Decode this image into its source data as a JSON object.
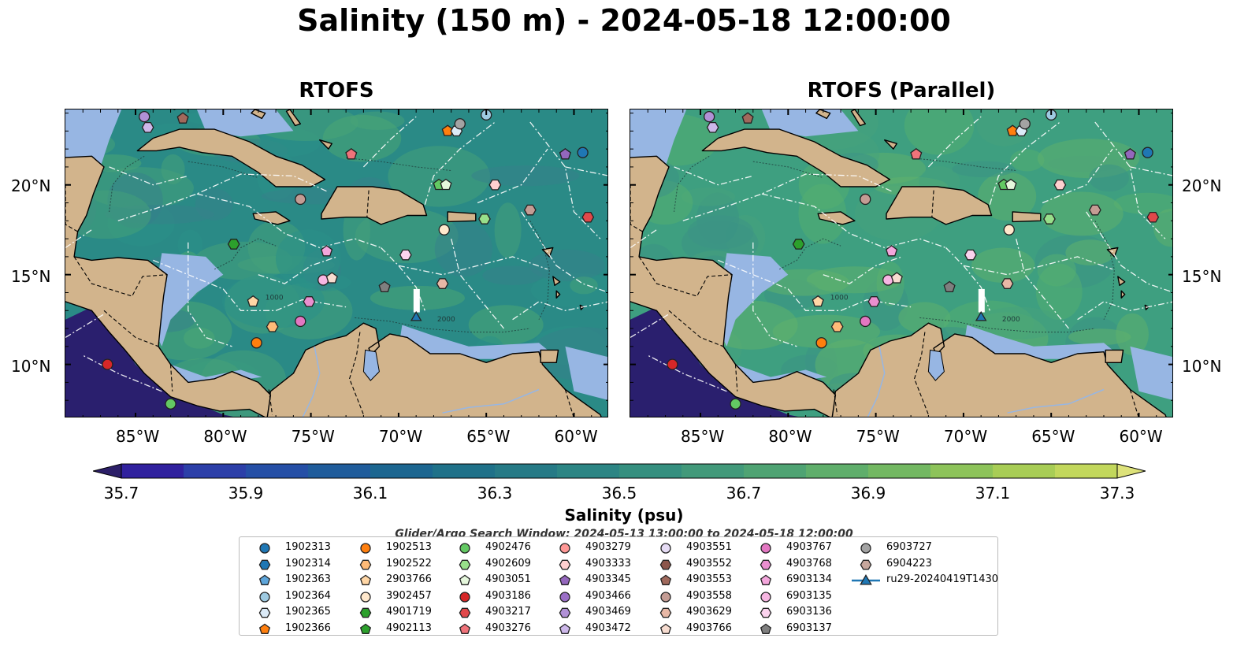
{
  "title": "Salinity (150 m) - 2024-05-18 12:00:00",
  "panels": [
    {
      "title": "RTOFS",
      "palette": [
        "#2a8a86",
        "#2c9488",
        "#4ea876",
        "#3a7f8c",
        "#55b06f"
      ]
    },
    {
      "title": "RTOFS (Parallel)",
      "palette": [
        "#3e9f80",
        "#48a47b",
        "#5bb46c",
        "#3c8f87",
        "#6ab866"
      ]
    }
  ],
  "map": {
    "lon_range": [
      -89,
      -58
    ],
    "lat_range": [
      7,
      24.2
    ],
    "lat_ticks": [
      "20°N",
      "15°N",
      "10°N"
    ],
    "lon_ticks": [
      "85°W",
      "80°W",
      "75°W",
      "70°W",
      "65°W",
      "60°W"
    ],
    "land_color": "#d2b48c",
    "shelf_color": "#97b6e3",
    "pacific_color": "#2a1f6e"
  },
  "colorbar": {
    "title": "Salinity (psu)",
    "ticks": [
      "35.7",
      "35.9",
      "36.1",
      "36.3",
      "36.5",
      "36.7",
      "36.9",
      "37.1",
      "37.3"
    ],
    "colors": [
      "#2c1f68",
      "#30219e",
      "#2c3fa8",
      "#254fa6",
      "#1f5c9b",
      "#1c6690",
      "#1f7189",
      "#267a86",
      "#2c8584",
      "#358f7f",
      "#42997a",
      "#4fa373",
      "#5fae6b",
      "#73b862",
      "#8dc35a",
      "#a8cd56",
      "#c2d75c",
      "#dde27a"
    ]
  },
  "search_window": "Glider/Argo Search Window: 2024-05-13 13:00:00 to 2024-05-18 12:00:00",
  "legend": [
    {
      "id": "1902313",
      "shape": "circle",
      "color": "#1f77b4"
    },
    {
      "id": "1902314",
      "shape": "hexagon",
      "color": "#1f77b4"
    },
    {
      "id": "1902363",
      "shape": "pentagon",
      "color": "#5da5da"
    },
    {
      "id": "1902364",
      "shape": "circle",
      "color": "#9ecae1"
    },
    {
      "id": "1902365",
      "shape": "hexagon",
      "color": "#dbeaf7"
    },
    {
      "id": "1902366",
      "shape": "pentagon",
      "color": "#ff7f0e"
    },
    {
      "id": "1902513",
      "shape": "circle",
      "color": "#ff7f0e"
    },
    {
      "id": "1902522",
      "shape": "hexagon",
      "color": "#ffbb78"
    },
    {
      "id": "2903766",
      "shape": "pentagon",
      "color": "#ffd6a5"
    },
    {
      "id": "3902457",
      "shape": "circle",
      "color": "#ffe8cc"
    },
    {
      "id": "4901719",
      "shape": "hexagon",
      "color": "#2ca02c"
    },
    {
      "id": "4902113",
      "shape": "pentagon",
      "color": "#2ca02c"
    },
    {
      "id": "4902476",
      "shape": "circle",
      "color": "#63c963"
    },
    {
      "id": "4902609",
      "shape": "hexagon",
      "color": "#98df8a"
    },
    {
      "id": "4903051",
      "shape": "pentagon",
      "color": "#e5f7dc"
    },
    {
      "id": "4903186",
      "shape": "circle",
      "color": "#d62728"
    },
    {
      "id": "4903217",
      "shape": "hexagon",
      "color": "#e0484a"
    },
    {
      "id": "4903276",
      "shape": "pentagon",
      "color": "#f0737a"
    },
    {
      "id": "4903279",
      "shape": "circle",
      "color": "#ff9896"
    },
    {
      "id": "4903333",
      "shape": "hexagon",
      "color": "#ffd0d0"
    },
    {
      "id": "4903345",
      "shape": "pentagon",
      "color": "#9467bd"
    },
    {
      "id": "4903466",
      "shape": "circle",
      "color": "#9b6fc7"
    },
    {
      "id": "4903469",
      "shape": "hexagon",
      "color": "#b191d6"
    },
    {
      "id": "4903472",
      "shape": "pentagon",
      "color": "#cdb8ea"
    },
    {
      "id": "4903551",
      "shape": "circle",
      "color": "#e6dcf5"
    },
    {
      "id": "4903552",
      "shape": "hexagon",
      "color": "#8c564b"
    },
    {
      "id": "4903553",
      "shape": "pentagon",
      "color": "#a0695c"
    },
    {
      "id": "4903558",
      "shape": "circle",
      "color": "#c49c94"
    },
    {
      "id": "4903629",
      "shape": "hexagon",
      "color": "#e8b8a6"
    },
    {
      "id": "4903766",
      "shape": "pentagon",
      "color": "#f7dcd0"
    },
    {
      "id": "4903767",
      "shape": "circle",
      "color": "#e377c2"
    },
    {
      "id": "4903768",
      "shape": "hexagon",
      "color": "#ea8fcf"
    },
    {
      "id": "6903134",
      "shape": "pentagon",
      "color": "#f4a6dc"
    },
    {
      "id": "6903135",
      "shape": "circle",
      "color": "#f7b6e2"
    },
    {
      "id": "6903136",
      "shape": "hexagon",
      "color": "#fbd3ee"
    },
    {
      "id": "6903137",
      "shape": "pentagon",
      "color": "#7f7f7f"
    },
    {
      "id": "6903727",
      "shape": "circle",
      "color": "#a3a3a3"
    },
    {
      "id": "6904223",
      "shape": "hexagon",
      "color": "#c7a79d"
    },
    {
      "id": "ru29-20240419T1430",
      "shape": "triangle",
      "color": "#1f77b4"
    }
  ],
  "markers": [
    {
      "id": "1902363",
      "lon": -59.5,
      "lat": 21.8,
      "shape": "circle",
      "color": "#1f77b4"
    },
    {
      "id": "1902364",
      "lon": -65.0,
      "lat": 23.9,
      "shape": "circle",
      "color": "#9ecae1"
    },
    {
      "id": "1902366",
      "lon": -67.2,
      "lat": 23.0,
      "shape": "pentagon",
      "color": "#ff7f0e"
    },
    {
      "id": "1902365",
      "lon": -66.7,
      "lat": 23.0,
      "shape": "hexagon",
      "color": "#dbeaf7"
    },
    {
      "id": "6903727",
      "lon": -66.5,
      "lat": 23.4,
      "shape": "circle",
      "color": "#a3a3a3"
    },
    {
      "id": "4903345",
      "lon": -60.5,
      "lat": 21.7,
      "shape": "pentagon",
      "color": "#9467bd"
    },
    {
      "id": "4903276",
      "lon": -72.7,
      "lat": 21.7,
      "shape": "pentagon",
      "color": "#f0737a"
    },
    {
      "id": "4903466",
      "lon": -84.5,
      "lat": 23.8,
      "shape": "circle",
      "color": "#b191d6"
    },
    {
      "id": "4903469",
      "lon": -84.3,
      "lat": 23.2,
      "shape": "hexagon",
      "color": "#cdb8ea"
    },
    {
      "id": "4903552",
      "lon": -82.3,
      "lat": 23.7,
      "shape": "pentagon",
      "color": "#a0695c"
    },
    {
      "id": "4902113",
      "lon": -67.7,
      "lat": 20.0,
      "shape": "pentagon",
      "color": "#63c963"
    },
    {
      "id": "4903051",
      "lon": -67.3,
      "lat": 20.0,
      "shape": "pentagon",
      "color": "#e5f7dc"
    },
    {
      "id": "4903333",
      "lon": -64.5,
      "lat": 20.0,
      "shape": "hexagon",
      "color": "#ffd0d0"
    },
    {
      "id": "4903558",
      "lon": -75.6,
      "lat": 19.2,
      "shape": "circle",
      "color": "#c49c94"
    },
    {
      "id": "6904223",
      "lon": -62.5,
      "lat": 18.6,
      "shape": "hexagon",
      "color": "#c49c94"
    },
    {
      "id": "4903217",
      "lon": -59.2,
      "lat": 18.2,
      "shape": "hexagon",
      "color": "#e0484a"
    },
    {
      "id": "4902609",
      "lon": -65.1,
      "lat": 18.1,
      "shape": "hexagon",
      "color": "#98df8a"
    },
    {
      "id": "3902457",
      "lon": -67.4,
      "lat": 17.5,
      "shape": "circle",
      "color": "#ffe8cc"
    },
    {
      "id": "4901719",
      "lon": -79.4,
      "lat": 16.7,
      "shape": "hexagon",
      "color": "#2ca02c"
    },
    {
      "id": "6903134",
      "lon": -74.1,
      "lat": 16.3,
      "shape": "pentagon",
      "color": "#f4a6dc"
    },
    {
      "id": "6903136",
      "lon": -69.6,
      "lat": 16.1,
      "shape": "hexagon",
      "color": "#fbd3ee"
    },
    {
      "id": "6903135",
      "lon": -74.3,
      "lat": 14.7,
      "shape": "circle",
      "color": "#f7b6e2"
    },
    {
      "id": "4903766",
      "lon": -73.8,
      "lat": 14.8,
      "shape": "pentagon",
      "color": "#f7dcd0"
    },
    {
      "id": "6903137",
      "lon": -70.8,
      "lat": 14.3,
      "shape": "pentagon",
      "color": "#7f7f7f"
    },
    {
      "id": "4903629",
      "lon": -67.5,
      "lat": 14.5,
      "shape": "hexagon",
      "color": "#e8b8a6"
    },
    {
      "id": "2903766",
      "lon": -78.3,
      "lat": 13.5,
      "shape": "pentagon",
      "color": "#ffd6a5"
    },
    {
      "id": "4903768",
      "lon": -75.1,
      "lat": 13.5,
      "shape": "hexagon",
      "color": "#ea8fcf"
    },
    {
      "id": "1902522",
      "lon": -77.2,
      "lat": 12.1,
      "shape": "hexagon",
      "color": "#ffbb78"
    },
    {
      "id": "4903767",
      "lon": -75.6,
      "lat": 12.4,
      "shape": "circle",
      "color": "#e377c2"
    },
    {
      "id": "1902513",
      "lon": -78.1,
      "lat": 11.2,
      "shape": "circle",
      "color": "#ff7f0e"
    },
    {
      "id": "4903186",
      "lon": -86.6,
      "lat": 10.0,
      "shape": "circle",
      "color": "#d62728"
    },
    {
      "id": "4902476",
      "lon": -83.0,
      "lat": 7.8,
      "shape": "circle",
      "color": "#63c963"
    },
    {
      "id": "ru29-20240419T1430",
      "lon": -69.0,
      "lat": 12.6,
      "shape": "triangle",
      "color": "#1f77b4"
    }
  ]
}
